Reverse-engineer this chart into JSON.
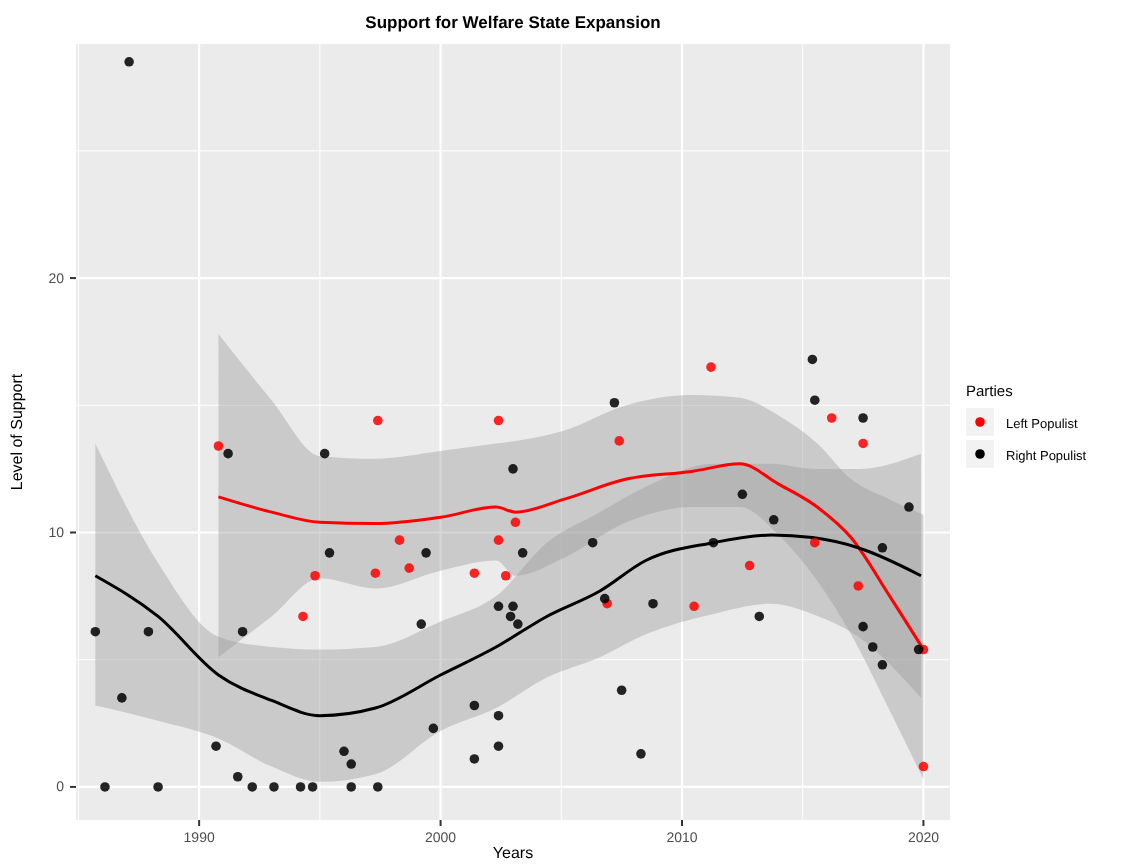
{
  "chart_data": {
    "type": "scatter",
    "title": "Support for Welfare State Expansion",
    "xlabel": "Years",
    "ylabel": "Level of Support",
    "legend_title": "Parties",
    "legend": "right",
    "grid": true,
    "xlim": [
      1984.9,
      2021.1
    ],
    "ylim": [
      -1.3,
      29.2
    ],
    "xticks": [
      1990,
      2000,
      2010,
      2020
    ],
    "yticks": [
      0,
      10,
      20
    ],
    "series": [
      {
        "name": "Left Populist",
        "color": "#ff0000",
        "marker": "circle",
        "x": [
          1997.4,
          2002.4,
          1990.8,
          1994.3,
          1994.8,
          1997.3,
          1998.3,
          1998.7,
          2001.4,
          2002.4,
          2002.7,
          2003.1,
          2007.4,
          2006.9,
          2011.2,
          2010.5,
          2012.8,
          2015.5,
          2016.2,
          2017.5,
          2017.3,
          2020.0,
          2020.0
        ],
        "values": [
          14.4,
          14.4,
          13.4,
          6.7,
          8.3,
          8.4,
          9.7,
          8.6,
          8.4,
          9.7,
          8.3,
          10.4,
          13.6,
          7.2,
          16.5,
          7.1,
          8.7,
          9.6,
          14.5,
          13.5,
          7.9,
          5.4,
          0.8
        ]
      },
      {
        "name": "Right Populist",
        "color": "#000000",
        "marker": "circle",
        "x": [
          1987.1,
          1985.7,
          1986.1,
          1986.8,
          1987.9,
          1988.3,
          1990.7,
          1991.2,
          1991.8,
          1991.6,
          1992.2,
          1993.1,
          1994.2,
          1994.7,
          1995.2,
          1995.4,
          1996.0,
          1996.3,
          1996.3,
          1997.4,
          1999.2,
          1999.4,
          1999.7,
          2001.4,
          2001.4,
          2002.4,
          2002.4,
          2002.4,
          2002.9,
          2003.0,
          2003.0,
          2003.4,
          2003.2,
          2007.2,
          2006.3,
          2006.8,
          2007.5,
          2008.3,
          2008.8,
          2011.3,
          2012.5,
          2013.2,
          2013.8,
          2015.4,
          2015.5,
          2017.5,
          2017.5,
          2017.9,
          2018.3,
          2018.3,
          2019.4,
          2019.8
        ],
        "values": [
          28.5,
          6.1,
          0,
          3.5,
          6.1,
          0,
          1.6,
          13.1,
          6.1,
          0.4,
          0,
          0,
          0,
          0,
          13.1,
          9.2,
          1.4,
          0.9,
          0,
          0,
          6.4,
          9.2,
          2.3,
          3.2,
          1.1,
          2.8,
          1.6,
          7.1,
          6.7,
          7.1,
          12.5,
          9.2,
          6.4,
          15.1,
          9.6,
          7.4,
          3.8,
          1.3,
          7.2,
          9.6,
          11.5,
          6.7,
          10.5,
          16.8,
          15.2,
          14.5,
          6.3,
          5.5,
          4.8,
          9.4,
          11.0,
          5.4
        ]
      },
      {
        "color": "#ff0000",
        "type": "line",
        "x": [
          1990.8,
          1993,
          1995,
          1997.3,
          2000,
          2002.3,
          2003.1,
          2005.1,
          2007.7,
          2010.4,
          2012.4,
          2014,
          2015.6,
          2017,
          2018.6,
          2020
        ],
        "values": [
          11.4,
          10.8,
          10.4,
          10.35,
          10.6,
          11.0,
          10.8,
          11.3,
          12.1,
          12.4,
          12.7,
          11.9,
          11.0,
          9.8,
          7.5,
          5.4
        ],
        "lower": [
          5.1,
          6.7,
          8.2,
          7.8,
          8.5,
          8.9,
          8.3,
          9.0,
          10.4,
          11.0,
          11.0,
          9.9,
          8.1,
          6.0,
          3.0,
          0.3
        ],
        "upper": [
          17.8,
          15.2,
          13.0,
          12.9,
          13.2,
          13.5,
          13.6,
          14.0,
          15.0,
          15.4,
          15.3,
          14.6,
          13.5,
          12.1,
          11.3,
          10.7
        ]
      },
      {
        "color": "#000000",
        "type": "line",
        "x": [
          1985.7,
          1988.3,
          1990.8,
          1993,
          1995,
          1997.3,
          2000,
          2002.3,
          2004.4,
          2006.6,
          2008.5,
          2011.3,
          2013.7,
          2015.4,
          2017.3,
          2019.9
        ],
        "values": [
          8.3,
          6.7,
          4.4,
          3.4,
          2.8,
          3.1,
          4.4,
          5.5,
          6.7,
          7.7,
          8.9,
          9.6,
          9.9,
          9.8,
          9.4,
          8.3
        ],
        "lower": [
          3.2,
          2.6,
          1.9,
          0.8,
          0.2,
          0.5,
          2.2,
          3.1,
          4.3,
          5.1,
          6.0,
          6.8,
          7.2,
          6.8,
          5.9,
          3.5
        ],
        "upper": [
          13.5,
          8.8,
          5.9,
          5.5,
          5.4,
          5.5,
          6.5,
          7.5,
          9.6,
          10.8,
          11.8,
          12.7,
          12.7,
          12.5,
          12.5,
          13.1
        ]
      }
    ]
  }
}
